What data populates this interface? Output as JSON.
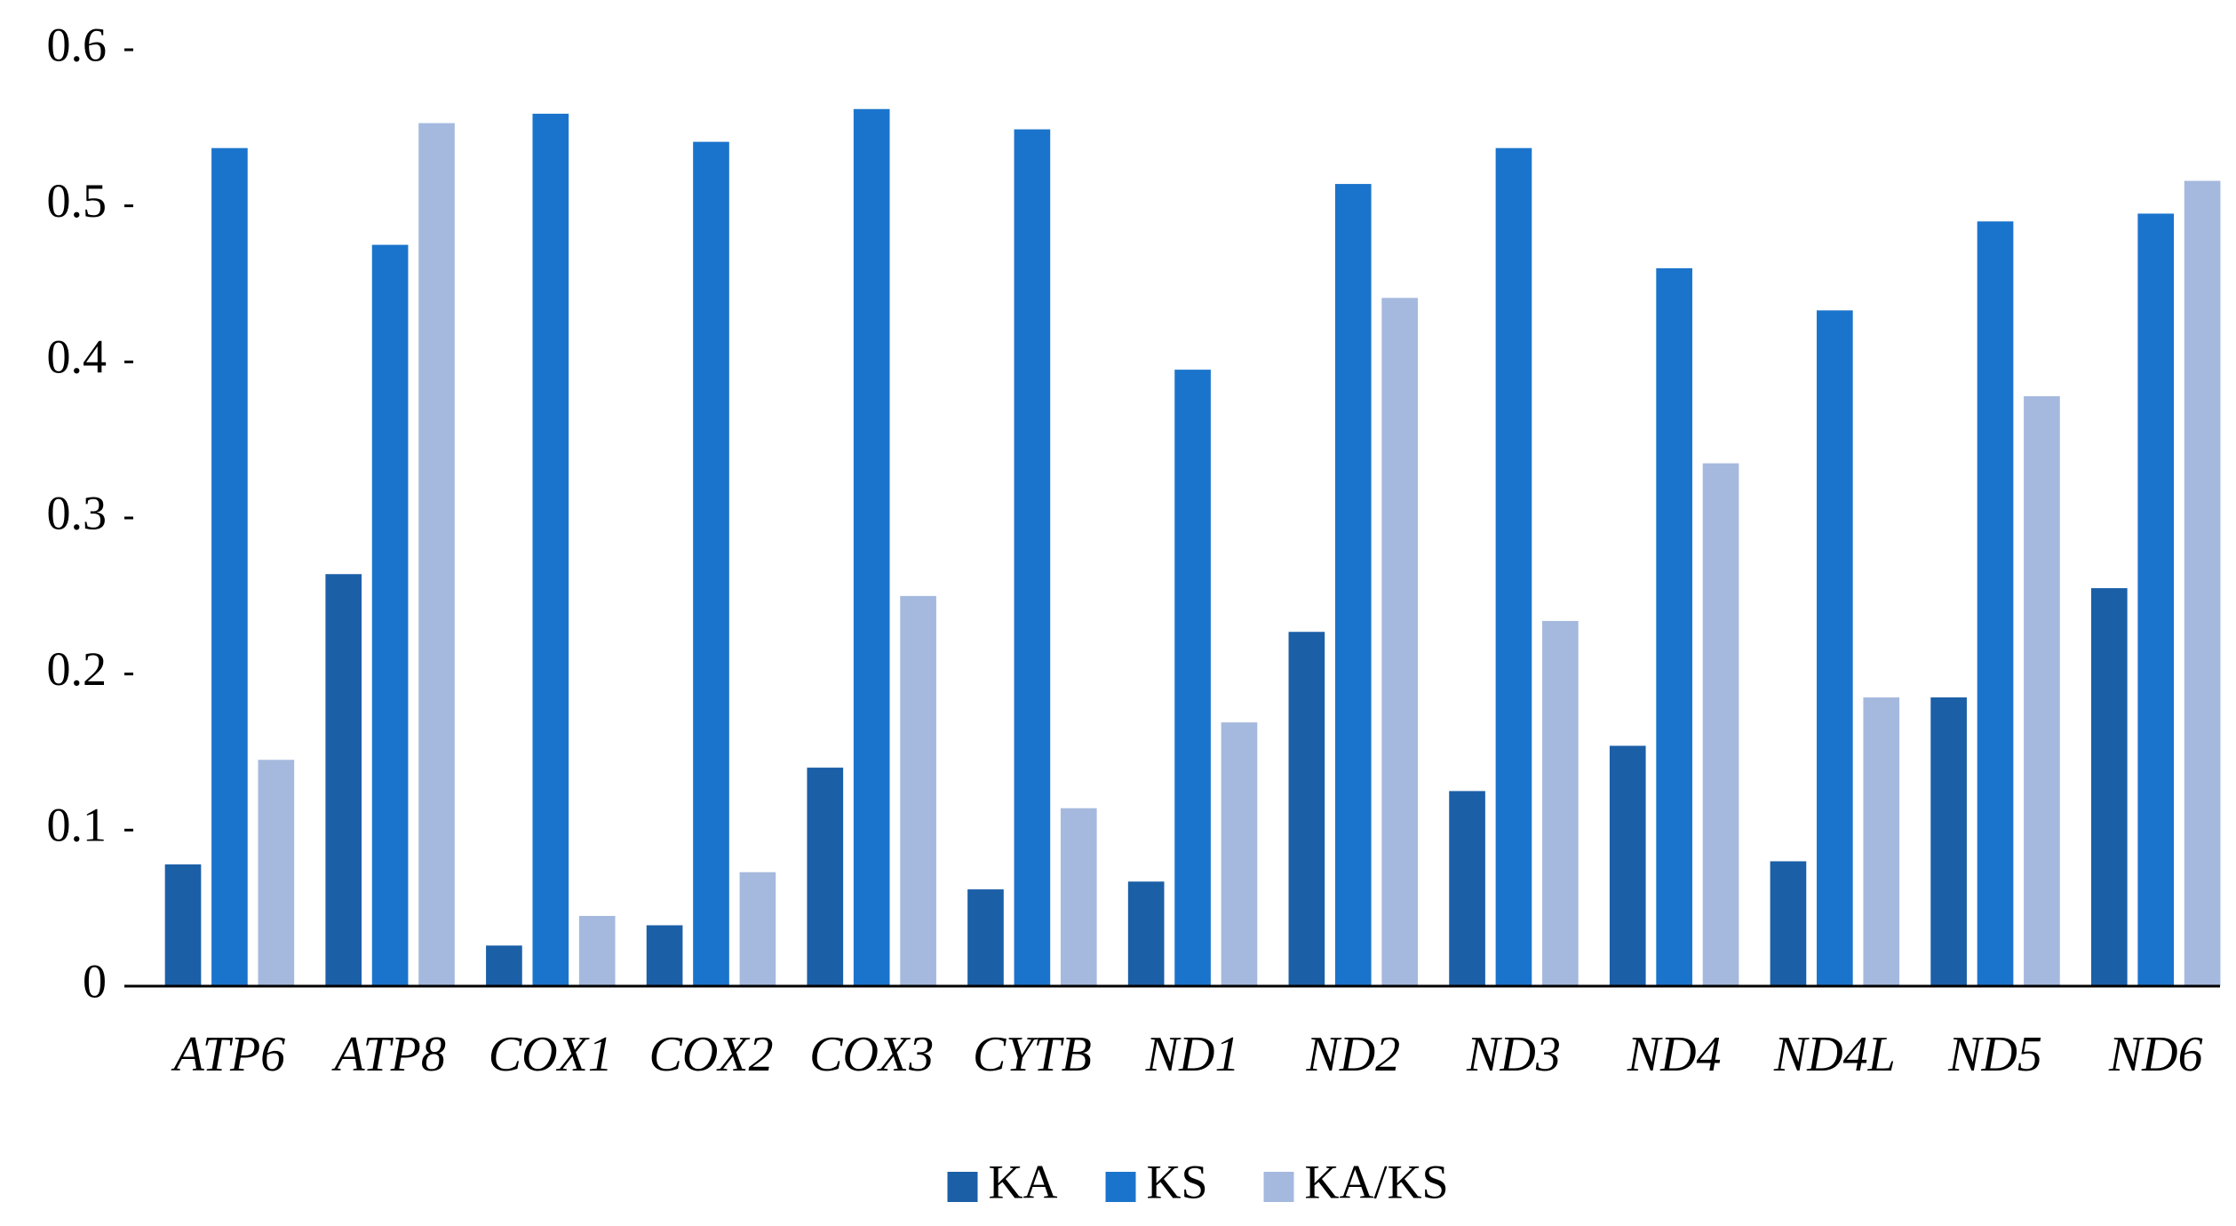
{
  "chart_data": {
    "type": "bar",
    "categories": [
      "ATP6",
      "ATP8",
      "COX1",
      "COX2",
      "COX3",
      "CYTB",
      "ND1",
      "ND2",
      "ND3",
      "ND4",
      "ND4L",
      "ND5",
      "ND6"
    ],
    "series": [
      {
        "name": "KA",
        "color": "#1b5fa7",
        "values": [
          0.078,
          0.264,
          0.026,
          0.039,
          0.14,
          0.062,
          0.067,
          0.227,
          0.125,
          0.154,
          0.08,
          0.185,
          0.255
        ]
      },
      {
        "name": "KS",
        "color": "#1b74cc",
        "values": [
          0.537,
          0.475,
          0.559,
          0.541,
          0.562,
          0.549,
          0.395,
          0.514,
          0.537,
          0.46,
          0.433,
          0.49,
          0.495
        ]
      },
      {
        "name": "KA/KS",
        "color": "#a5b9de",
        "values": [
          0.145,
          0.553,
          0.045,
          0.073,
          0.25,
          0.114,
          0.169,
          0.441,
          0.234,
          0.335,
          0.185,
          0.378,
          0.516
        ]
      }
    ],
    "ylim": [
      0,
      0.6
    ],
    "yticks": [
      0,
      0.1,
      0.2,
      0.3,
      0.4,
      0.5,
      0.6
    ],
    "legend": "bottom"
  }
}
